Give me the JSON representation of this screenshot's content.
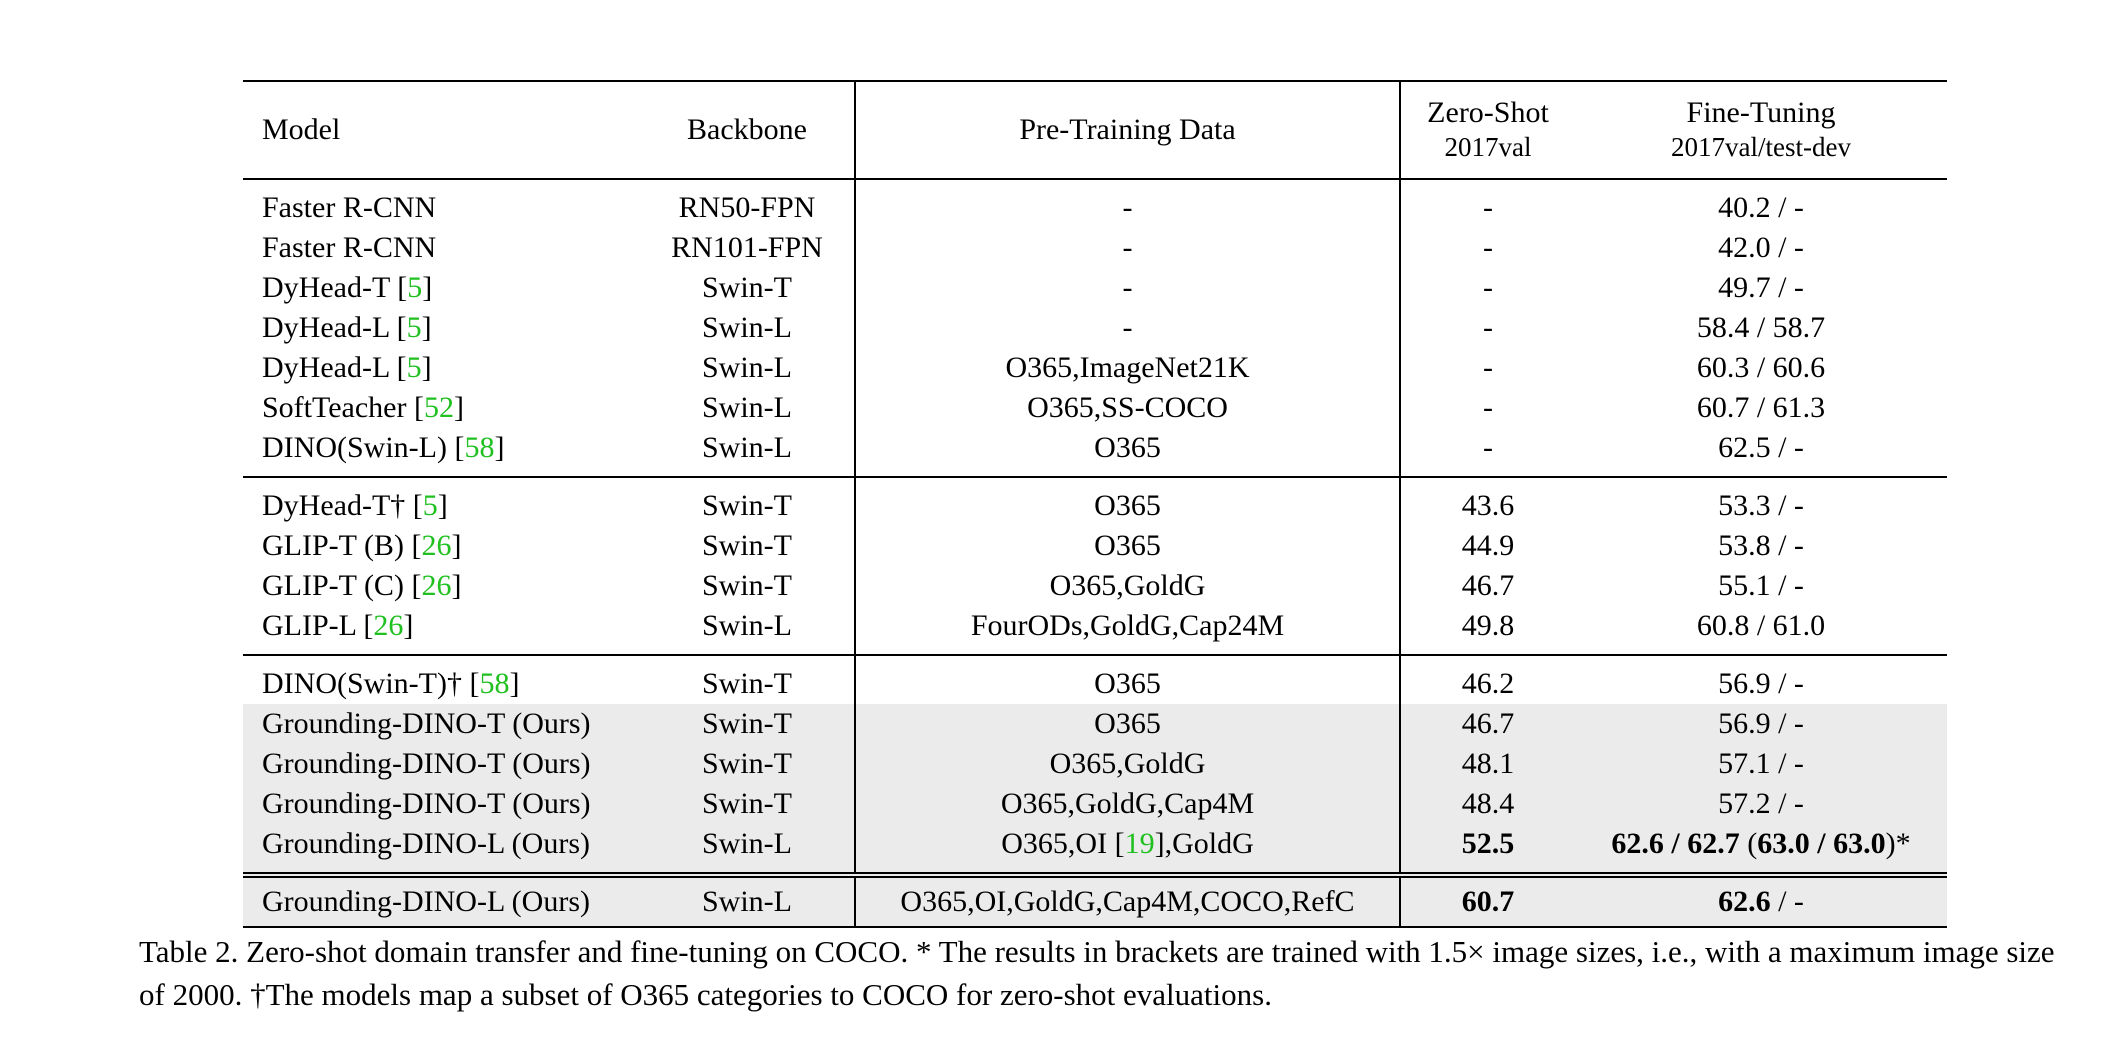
{
  "table": {
    "header": {
      "model": "Model",
      "backbone": "Backbone",
      "data": "Pre-Training Data",
      "zero_shot": "Zero-Shot",
      "zero_shot_sub": "2017val",
      "fine_tuning": "Fine-Tuning",
      "fine_tuning_sub": "2017val/test-dev"
    },
    "style": {
      "citation_color": "#1fc01f",
      "shade_color": "#ebebeb"
    },
    "groups": [
      {
        "rows": [
          {
            "cells": [
              "Faster R-CNN",
              "RN50-FPN",
              "-",
              "-",
              "40.2 / -"
            ]
          },
          {
            "cells": [
              "Faster R-CNN",
              "RN101-FPN",
              "-",
              "-",
              "42.0 / -"
            ]
          },
          {
            "cells": [
              "DyHead-T [5]",
              "Swin-T",
              "-",
              "-",
              "49.7 / -"
            ]
          },
          {
            "cells": [
              "DyHead-L [5]",
              "Swin-L",
              "-",
              "-",
              "58.4 / 58.7"
            ]
          },
          {
            "cells": [
              "DyHead-L [5]",
              "Swin-L",
              "O365,ImageNet21K",
              "-",
              "60.3 / 60.6"
            ]
          },
          {
            "cells": [
              "SoftTeacher [52]",
              "Swin-L",
              "O365,SS-COCO",
              "-",
              "60.7 / 61.3"
            ]
          },
          {
            "cells": [
              "DINO(Swin-L) [58]",
              "Swin-L",
              "O365",
              "-",
              "62.5 / -"
            ]
          }
        ]
      },
      {
        "rows": [
          {
            "cells": [
              "DyHead-T† [5]",
              "Swin-T",
              "O365",
              "43.6",
              "53.3 / -"
            ]
          },
          {
            "cells": [
              "GLIP-T (B) [26]",
              "Swin-T",
              "O365",
              "44.9",
              "53.8 / -"
            ]
          },
          {
            "cells": [
              "GLIP-T (C) [26]",
              "Swin-T",
              "O365,GoldG",
              "46.7",
              "55.1 / -"
            ]
          },
          {
            "cells": [
              "GLIP-L [26]",
              "Swin-L",
              "FourODs,GoldG,Cap24M",
              "49.8",
              "60.8 / 61.0"
            ]
          }
        ]
      },
      {
        "rows": [
          {
            "cells": [
              "DINO(Swin-T)† [58]",
              "Swin-T",
              "O365",
              "46.2",
              "56.9 / -"
            ]
          },
          {
            "cells": [
              "Grounding-DINO-T (Ours)",
              "Swin-T",
              "O365",
              "46.7",
              "56.9 / -"
            ],
            "shaded": true
          },
          {
            "cells": [
              "Grounding-DINO-T (Ours)",
              "Swin-T",
              "O365,GoldG",
              "48.1",
              "57.1 / -"
            ],
            "shaded": true
          },
          {
            "cells": [
              "Grounding-DINO-T (Ours)",
              "Swin-T",
              "O365,GoldG,Cap4M",
              "48.4",
              "57.2 / -"
            ],
            "shaded": true
          },
          {
            "cells": [
              "Grounding-DINO-L (Ours)",
              "Swin-L",
              "O365,OI [19],GoldG",
              "52.5",
              "62.6 / 62.7 (63.0 / 63.0)*"
            ],
            "shaded": true,
            "bold": true
          }
        ]
      },
      {
        "rows": [
          {
            "cells": [
              "Grounding-DINO-L (Ours)",
              "Swin-L",
              "O365,OI,GoldG,Cap4M,COCO,RefC",
              "60.7",
              "62.6 / -"
            ],
            "shaded": true,
            "bold": true
          }
        ]
      }
    ],
    "caption": "Table 2.  Zero-shot domain transfer and fine-tuning on COCO. * The results in brackets are trained with 1.5× image sizes, i.e., with a maximum image size of 2000. †The models map a subset of O365 categories to COCO for zero-shot evaluations."
  }
}
